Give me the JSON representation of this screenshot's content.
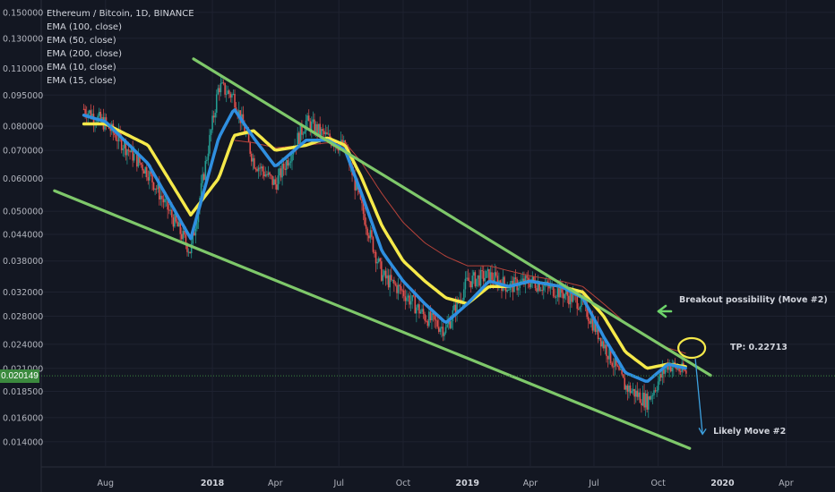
{
  "legend": {
    "title": "Ethereum / Bitcoin, 1D, BINANCE",
    "items": [
      "EMA (100, close)",
      "EMA (50, close)",
      "EMA (200, close)",
      "EMA (10, close)",
      "EMA (15, close)"
    ]
  },
  "current_price": "0.020149",
  "annotations": {
    "breakout": "Breakout possibility (Move #2)",
    "tp": "TP: 0.22713",
    "likely": "Likely Move #2"
  },
  "colors": {
    "background": "#131722",
    "trendline": "#7ec86a",
    "ema_yellow": "#f5e94a",
    "ema_blue": "#2f8fe0",
    "ema_red": "#b8433a",
    "candle_up": "#26a69a",
    "candle_down": "#ef5350",
    "price_line": "#3b8a3e",
    "arrow_green": "#6dd36a",
    "arrow_blue": "#3da1e0"
  },
  "chart_data": {
    "type": "line",
    "scale": "log",
    "ylim": [
      0.0128,
      0.159
    ],
    "y_ticks": [
      "0.150000",
      "0.130000",
      "0.110000",
      "0.095000",
      "0.080000",
      "0.070000",
      "0.060000",
      "0.050000",
      "0.044000",
      "0.038000",
      "0.032000",
      "0.028000",
      "0.024000",
      "0.021000",
      "0.018500",
      "0.016000",
      "0.014000"
    ],
    "x_ticks": [
      {
        "label": "Aug",
        "bold": false
      },
      {
        "label": "2018",
        "bold": true
      },
      {
        "label": "Apr",
        "bold": false
      },
      {
        "label": "Jul",
        "bold": false
      },
      {
        "label": "Oct",
        "bold": false
      },
      {
        "label": "2019",
        "bold": true
      },
      {
        "label": "Apr",
        "bold": false
      },
      {
        "label": "Jul",
        "bold": false
      },
      {
        "label": "Oct",
        "bold": false
      },
      {
        "label": "2020",
        "bold": true
      },
      {
        "label": "Apr",
        "bold": false
      }
    ],
    "x": [
      "2017-07-01",
      "2017-08-01",
      "2017-10-01",
      "2017-12-01",
      "2018-01-10",
      "2018-02-01",
      "2018-03-01",
      "2018-04-01",
      "2018-05-15",
      "2018-06-15",
      "2018-07-10",
      "2018-08-01",
      "2018-09-01",
      "2018-10-01",
      "2018-11-01",
      "2018-12-01",
      "2019-01-01",
      "2019-02-01",
      "2019-03-01",
      "2019-04-01",
      "2019-05-15",
      "2019-06-15",
      "2019-07-15",
      "2019-08-15",
      "2019-09-15",
      "2019-10-15",
      "2019-11-10"
    ],
    "series": [
      {
        "role": "price",
        "values": [
          0.088,
          0.081,
          0.062,
          0.04,
          0.1,
          0.094,
          0.066,
          0.058,
          0.082,
          0.075,
          0.071,
          0.052,
          0.035,
          0.032,
          0.028,
          0.026,
          0.034,
          0.035,
          0.033,
          0.034,
          0.032,
          0.03,
          0.024,
          0.019,
          0.0175,
          0.0215,
          0.0205
        ]
      },
      {
        "role": "ema_fast_blue",
        "values": [
          0.085,
          0.082,
          0.065,
          0.043,
          0.075,
          0.088,
          0.075,
          0.064,
          0.074,
          0.074,
          0.07,
          0.056,
          0.04,
          0.034,
          0.03,
          0.027,
          0.03,
          0.034,
          0.033,
          0.034,
          0.033,
          0.031,
          0.025,
          0.0205,
          0.0195,
          0.0215,
          0.021
        ]
      },
      {
        "role": "ema_slow_yellow",
        "values": [
          0.081,
          0.081,
          0.072,
          0.049,
          0.06,
          0.076,
          0.078,
          0.07,
          0.072,
          0.075,
          0.072,
          0.061,
          0.046,
          0.038,
          0.034,
          0.031,
          0.03,
          0.033,
          0.033,
          0.034,
          0.033,
          0.032,
          0.028,
          0.023,
          0.021,
          0.0215,
          0.0212
        ]
      },
      {
        "role": "ema_red",
        "values": [
          null,
          null,
          null,
          null,
          null,
          0.074,
          0.073,
          0.071,
          0.072,
          0.073,
          0.073,
          0.066,
          0.055,
          0.047,
          0.042,
          0.039,
          0.037,
          0.037,
          0.036,
          0.035,
          0.034,
          0.033,
          0.03,
          0.027,
          0.025,
          0.0235,
          0.0228
        ]
      }
    ],
    "trendlines": [
      {
        "from": [
          "2017-12-05",
          0.116
        ],
        "to": [
          "2019-12-15",
          0.0202
        ]
      },
      {
        "from": [
          "2017-05-20",
          0.056
        ],
        "to": [
          "2019-11-15",
          0.0135
        ]
      }
    ]
  }
}
